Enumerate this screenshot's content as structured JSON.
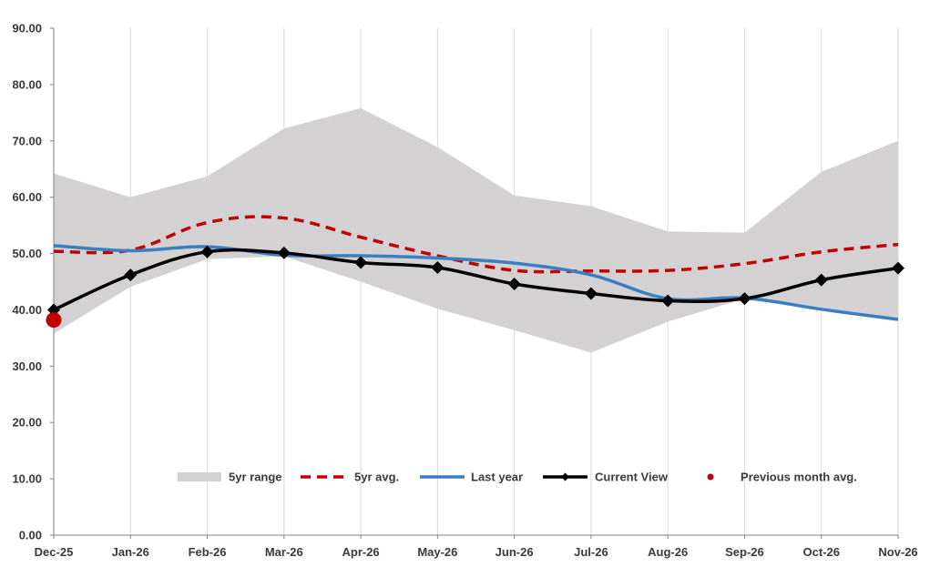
{
  "chart_data": {
    "type": "line",
    "title": "",
    "xlabel": "",
    "ylabel": "",
    "categories": [
      "Dec-25",
      "Jan-26",
      "Feb-26",
      "Mar-26",
      "Apr-26",
      "May-26",
      "Jun-26",
      "Jul-26",
      "Aug-26",
      "Sep-26",
      "Oct-26",
      "Nov-26"
    ],
    "y_ticks": [
      "0.00",
      "10.00",
      "20.00",
      "30.00",
      "40.00",
      "50.00",
      "60.00",
      "70.00",
      "80.00",
      "90.00"
    ],
    "ylim": [
      0,
      90
    ],
    "grid": "vertical",
    "range_band": {
      "name": "5yr range",
      "upper": [
        64.2,
        60.0,
        63.7,
        72.2,
        75.8,
        68.9,
        60.3,
        58.4,
        53.9,
        53.7,
        64.5,
        70.0
      ],
      "lower": [
        35.8,
        44.1,
        49.0,
        49.5,
        45.0,
        40.2,
        36.4,
        32.4,
        37.9,
        42.0,
        40.2,
        38.3
      ]
    },
    "series": [
      {
        "name": "5yr avg.",
        "style": "dashed",
        "color": "#c00000",
        "values": [
          50.4,
          50.6,
          55.5,
          56.3,
          52.9,
          49.6,
          47.0,
          46.9,
          47.0,
          48.2,
          50.3,
          51.6
        ]
      },
      {
        "name": "Last year",
        "style": "solid",
        "color": "#3a7ebf",
        "values": [
          51.4,
          50.5,
          51.2,
          49.7,
          49.6,
          49.2,
          48.3,
          46.2,
          42.0,
          42.1,
          40.1,
          38.3
        ]
      },
      {
        "name": "Current View",
        "style": "solid-diamond",
        "color": "#000000",
        "values": [
          40.0,
          46.2,
          50.3,
          50.1,
          48.4,
          47.5,
          44.6,
          42.9,
          41.6,
          42.0,
          45.3,
          47.4
        ]
      }
    ],
    "previous_month_avg": {
      "name": "Previous month avg.",
      "category": "Dec-25",
      "value": 38.2,
      "color": "#c00000"
    },
    "legend": {
      "placement": "bottom-center",
      "entries": [
        "5yr range",
        "5yr avg.",
        "Last year",
        "Current View",
        "Previous month avg."
      ]
    },
    "colors": {
      "band": "#d3d1d2",
      "grid": "#d9d9d9",
      "axis": "#808080"
    }
  }
}
